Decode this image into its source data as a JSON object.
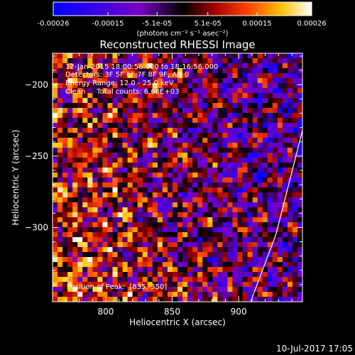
{
  "colorbar": {
    "tick_labels": [
      "-0.00026",
      "-0.00015",
      "-5.1e-05",
      "5.1e-05",
      "0.00015",
      "0.00026"
    ],
    "tick_values": [
      -0.00026,
      -0.00015,
      -5.1e-05,
      5.1e-05,
      0.00015,
      0.00026
    ],
    "range": [
      -0.00026,
      0.00026
    ],
    "unit_label": "(photons cm⁻² s⁻¹ asec⁻²)"
  },
  "title": "Reconstructed RHESSI Image",
  "info": {
    "line1": "12-Jan-2015 18:00:56.000 to 18:16:56.000",
    "line2": "Detectors: 3F 5F 6F 7F 8F 9F, Att 0",
    "line3": "Energy Range: 12.0 - 25.0 keV",
    "line4": "Clean     Total counts: 6.68E+03"
  },
  "peak_label": "Position of Peak:  [835,-350]",
  "footer_date": "10-Jul-2017 17:05",
  "chart_data": {
    "type": "heatmap",
    "title": "Reconstructed RHESSI Image",
    "xlabel": "Heliocentric X (arcsec)",
    "ylabel": "Heliocentric Y (arcsec)",
    "xlim": [
      760,
      948
    ],
    "ylim": [
      -352,
      -178
    ],
    "x_ticks": [
      800,
      850,
      900
    ],
    "y_ticks": [
      -200,
      -250,
      -300
    ],
    "x_tick_labels": [
      "800",
      "850",
      "900"
    ],
    "y_tick_labels": [
      "−200",
      "−250",
      "−300"
    ],
    "grid_cols": 50,
    "grid_rows": 50,
    "peak_position": [
      835,
      -350
    ],
    "limb": [
      [
        909,
        -352
      ],
      [
        928,
        -305
      ],
      [
        948,
        -232
      ]
    ],
    "colormap": [
      "#0000ff",
      "#7a00c8",
      "#000000",
      "#a00000",
      "#ff4000",
      "#ffc000",
      "#ffffff"
    ]
  }
}
